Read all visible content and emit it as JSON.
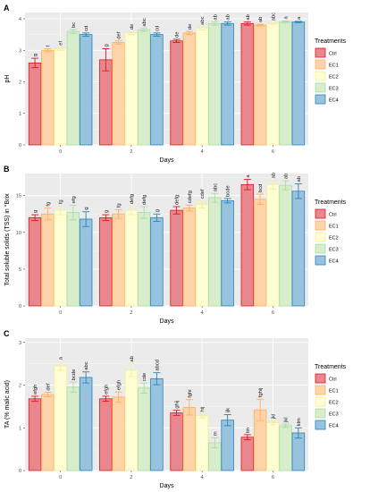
{
  "legend_title": "Treatments",
  "treatments": [
    "Ctrl",
    "EC1",
    "EC2",
    "EC3",
    "EC4"
  ],
  "colors": {
    "fill": [
      "#e8888e",
      "#fcd4a8",
      "#fefdd4",
      "#d7edcc",
      "#98c3df"
    ],
    "stroke": [
      "#d7191c",
      "#fdae61",
      "#f3ee9f",
      "#abdda4",
      "#2b83ba"
    ],
    "panel_bg": "#ebebeb",
    "grid_major": "#ffffff",
    "grid_minor": "#f5f5f5"
  },
  "chart_data": [
    {
      "type": "bar",
      "panel": "A",
      "xlabel": "Days",
      "ylabel": "pH",
      "categories": [
        "0",
        "2",
        "4",
        "6"
      ],
      "ylim": [
        0,
        4.2
      ],
      "yticks": [
        0,
        1,
        2,
        3,
        4
      ],
      "grid": true,
      "legend": "right",
      "series": [
        {
          "name": "Ctrl",
          "values": [
            2.6,
            2.7,
            3.3,
            3.85
          ],
          "errors": [
            0.15,
            0.35,
            0.05,
            0.05
          ],
          "letters": [
            "g",
            "g",
            "de",
            "ab"
          ]
        },
        {
          "name": "EC1",
          "values": [
            3.0,
            3.25,
            3.55,
            3.8
          ],
          "errors": [
            0.05,
            0.05,
            0.05,
            0.03
          ],
          "letters": [
            "f",
            "def",
            "de",
            "ab"
          ]
        },
        {
          "name": "EC2",
          "values": [
            3.05,
            3.55,
            3.7,
            3.85
          ],
          "errors": [
            0.05,
            0.05,
            0.05,
            0.03
          ],
          "letters": [
            "ef",
            "de",
            "abc",
            "abc"
          ]
        },
        {
          "name": "EC3",
          "values": [
            3.6,
            3.65,
            3.85,
            3.9
          ],
          "errors": [
            0.06,
            0.05,
            0.05,
            0.03
          ],
          "letters": [
            "bc",
            "abc",
            "ab",
            "a"
          ]
        },
        {
          "name": "EC4",
          "values": [
            3.5,
            3.5,
            3.85,
            3.9
          ],
          "errors": [
            0.05,
            0.05,
            0.05,
            0.02
          ],
          "letters": [
            "cd",
            "cd",
            "ab",
            "a"
          ]
        }
      ]
    },
    {
      "type": "bar",
      "panel": "B",
      "xlabel": "Days",
      "ylabel": "Total soluble solids (TSS) in °Brix",
      "categories": [
        "0",
        "2",
        "4",
        "6"
      ],
      "ylim": [
        0,
        18
      ],
      "yticks": [
        0,
        5,
        10,
        15
      ],
      "grid": true,
      "legend": "right",
      "series": [
        {
          "name": "Ctrl",
          "values": [
            12.0,
            12.0,
            13.0,
            16.5
          ],
          "errors": [
            0.4,
            0.4,
            0.5,
            0.7
          ],
          "letters": [
            "g",
            "g",
            "defg",
            "a"
          ]
        },
        {
          "name": "EC1",
          "values": [
            12.5,
            12.5,
            13.3,
            14.5
          ],
          "errors": [
            0.8,
            0.6,
            0.4,
            0.7
          ],
          "letters": [
            "fg",
            "fg",
            "cdefg",
            "bcd"
          ]
        },
        {
          "name": "EC2",
          "values": [
            13.0,
            13.0,
            13.8,
            16.5
          ],
          "errors": [
            0.6,
            0.6,
            0.5,
            0.6
          ],
          "letters": [
            "fg",
            "defg",
            "cdef",
            "ab"
          ]
        },
        {
          "name": "EC3",
          "values": [
            12.7,
            12.7,
            14.7,
            16.4
          ],
          "errors": [
            1.0,
            0.8,
            0.6,
            0.6
          ],
          "letters": [
            "efg",
            "defg",
            "abc",
            "ab"
          ]
        },
        {
          "name": "EC4",
          "values": [
            11.8,
            12.0,
            14.3,
            15.6
          ],
          "errors": [
            1.0,
            0.5,
            0.3,
            1.0
          ],
          "letters": [
            "g",
            "g",
            "bcde",
            "ab"
          ]
        }
      ]
    },
    {
      "type": "bar",
      "panel": "C",
      "xlabel": "Days",
      "ylabel": "TA (% malic acid)",
      "categories": [
        "0",
        "2",
        "4",
        "6"
      ],
      "ylim": [
        0,
        3.1
      ],
      "yticks": [
        0,
        1,
        2,
        3
      ],
      "grid": true,
      "legend": "right",
      "series": [
        {
          "name": "Ctrl",
          "values": [
            1.68,
            1.68,
            1.35,
            0.78
          ],
          "errors": [
            0.06,
            0.06,
            0.06,
            0.06
          ],
          "letters": [
            "efgh",
            "efgh",
            "ghij",
            "lm"
          ]
        },
        {
          "name": "EC1",
          "values": [
            1.78,
            1.72,
            1.48,
            1.42
          ],
          "errors": [
            0.05,
            0.12,
            0.18,
            0.25
          ],
          "letters": [
            "def",
            "efgh",
            "fghi",
            "fghij"
          ]
        },
        {
          "name": "EC2",
          "values": [
            2.45,
            2.35,
            1.28,
            1.12
          ],
          "errors": [
            0.1,
            0.15,
            0.05,
            0.05
          ],
          "letters": [
            "a",
            "ab",
            "hij",
            "jkl"
          ]
        },
        {
          "name": "EC3",
          "values": [
            1.95,
            1.93,
            0.65,
            1.05
          ],
          "errors": [
            0.12,
            0.12,
            0.12,
            0.04
          ],
          "letters": [
            "bcde",
            "cde",
            "m",
            "jkl"
          ]
        },
        {
          "name": "EC4",
          "values": [
            2.18,
            2.15,
            1.18,
            0.88
          ],
          "errors": [
            0.13,
            0.14,
            0.13,
            0.12
          ],
          "letters": [
            "abc",
            "abcd",
            "ijk",
            "klm"
          ]
        }
      ]
    }
  ]
}
